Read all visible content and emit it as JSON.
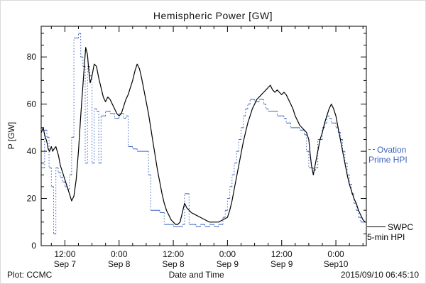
{
  "title": "Hemispheric Power [GW]",
  "axes": {
    "ylabel": "P [GW]",
    "xlabel": "Date and Time"
  },
  "footer": {
    "left": "Plot: CCMC",
    "right": "2015/09/10 06:45:10"
  },
  "legend": {
    "ovation_line1": "Ovation",
    "ovation_line2": "Prime HPI",
    "ovation_color": "#3b63c0",
    "swpc_line1": "SWPC",
    "swpc_line2": "5-min HPI",
    "swpc_color": "#000000"
  },
  "chart_data": {
    "type": "line",
    "title": "Hemispheric Power [GW]",
    "xlabel": "Date and Time",
    "ylabel": "P [GW]",
    "x_unit": "hours since 2015-09-07 00:00",
    "xlim": [
      6.75,
      78.75
    ],
    "ylim": [
      0,
      93
    ],
    "yticks": [
      0,
      20,
      40,
      60,
      80
    ],
    "xticks": [
      {
        "t": 12,
        "label": "12:00",
        "sub": "Sep 7"
      },
      {
        "t": 24,
        "label": "0:00",
        "sub": "Sep 8"
      },
      {
        "t": 36,
        "label": "12:00",
        "sub": "Sep 8"
      },
      {
        "t": 48,
        "label": "0:00",
        "sub": "Sep 9"
      },
      {
        "t": 60,
        "label": "12:00",
        "sub": "Sep 9"
      },
      {
        "t": 72,
        "label": "0:00",
        "sub": "Sep10"
      }
    ],
    "series": [
      {
        "name": "Ovation Prime HPI",
        "color": "#3b63c0",
        "style": "step",
        "x": [
          6.8,
          7.5,
          8,
          8.5,
          9,
          9.5,
          10,
          10.5,
          11,
          11.5,
          12,
          12.5,
          13,
          13.5,
          14,
          15,
          15.5,
          16,
          16.5,
          17,
          17.5,
          18,
          18.5,
          19,
          19.5,
          20,
          21,
          22,
          23,
          24,
          25,
          25.5,
          26,
          27,
          28,
          29,
          30,
          30.5,
          31,
          32,
          33,
          34,
          35,
          36,
          37,
          38,
          38.5,
          39.5,
          40,
          41,
          42,
          43,
          44,
          45,
          46,
          47,
          47.5,
          48,
          48.5,
          49,
          49.5,
          50,
          50.5,
          51,
          51.5,
          52,
          52.5,
          53,
          54,
          55,
          56,
          56.5,
          57,
          58,
          59,
          60,
          60.5,
          61,
          62,
          63,
          64,
          65,
          65.5,
          66,
          67,
          67.5,
          68,
          69,
          69.5,
          70,
          70.5,
          71,
          72,
          72.5,
          73,
          73.5,
          74,
          74.5,
          75,
          75.5,
          76,
          76.5,
          77,
          77.5,
          78.5
        ],
        "y": [
          33,
          49,
          46,
          33,
          25,
          5,
          33,
          31,
          29,
          27,
          25,
          24,
          30,
          46,
          88,
          90,
          80,
          76,
          35,
          76,
          72,
          35,
          58,
          57,
          35,
          55,
          57,
          56,
          54,
          56,
          54,
          55,
          42,
          41,
          40,
          40,
          40,
          30,
          15,
          15,
          14,
          9,
          9,
          8,
          8,
          9,
          22,
          9,
          9,
          8,
          9,
          8,
          9,
          8,
          9,
          12,
          15,
          20,
          25,
          30,
          35,
          40,
          45,
          50,
          55,
          58,
          60,
          62,
          61,
          62,
          60,
          58,
          57,
          57,
          55,
          55,
          54,
          52,
          50,
          50,
          49,
          47,
          40,
          33,
          32,
          33,
          45,
          50,
          52,
          55,
          54,
          52,
          50,
          48,
          45,
          40,
          35,
          30,
          26,
          22,
          18,
          15,
          12,
          10,
          10
        ]
      },
      {
        "name": "SWPC 5-min HPI",
        "color": "#000000",
        "style": "solid",
        "x": [
          6.8,
          7.2,
          7.5,
          8,
          8.3,
          8.6,
          9,
          9.3,
          9.6,
          10,
          10.3,
          10.6,
          11,
          11.5,
          12,
          12.5,
          13,
          13.5,
          14,
          14.5,
          15,
          15.5,
          16,
          16.3,
          16.6,
          17,
          17.3,
          17.6,
          18,
          18.5,
          19,
          19.5,
          20,
          20.5,
          21,
          21.5,
          22,
          22.5,
          23,
          23.5,
          24,
          24.5,
          25,
          25.5,
          26,
          26.5,
          27,
          27.5,
          28,
          28.5,
          29,
          29.5,
          30,
          30.5,
          31,
          31.5,
          32,
          32.5,
          33,
          33.5,
          34,
          34.5,
          35,
          35.5,
          36,
          36.5,
          37,
          37.5,
          38,
          38.5,
          39,
          40,
          41,
          42,
          43,
          44,
          45,
          46,
          47,
          48,
          48.5,
          49,
          49.5,
          50,
          50.5,
          51,
          51.5,
          52,
          52.5,
          53,
          53.5,
          54,
          54.5,
          55,
          55.5,
          56,
          56.5,
          57,
          57.5,
          58,
          58.5,
          59,
          59.5,
          60,
          60.5,
          61,
          61.5,
          62,
          62.5,
          63,
          63.5,
          64,
          64.5,
          65,
          65.5,
          66,
          66.3,
          66.6,
          67,
          67.5,
          68,
          68.5,
          69,
          69.5,
          70,
          70.5,
          71,
          71.5,
          72,
          72.5,
          73,
          73.5,
          74,
          74.5,
          75,
          75.5,
          76,
          76.5,
          77,
          77.5,
          78,
          78.5
        ],
        "y": [
          48,
          50,
          47,
          44,
          41,
          40,
          42,
          40,
          41,
          42,
          40,
          38,
          34,
          31,
          28,
          25,
          22,
          19,
          21,
          28,
          40,
          55,
          68,
          76,
          84,
          81,
          74,
          69,
          72,
          77,
          76,
          71,
          67,
          63,
          61,
          63,
          62,
          60,
          58,
          56,
          55,
          56,
          59,
          62,
          64,
          67,
          70,
          74,
          77,
          75,
          71,
          66,
          61,
          56,
          50,
          44,
          38,
          32,
          27,
          22,
          18,
          15,
          13,
          11,
          10,
          9,
          9,
          10,
          14,
          18,
          16,
          14,
          13,
          12,
          11,
          10,
          10,
          10,
          11,
          12,
          15,
          19,
          24,
          29,
          34,
          39,
          44,
          48,
          52,
          55,
          58,
          60,
          62,
          63,
          64,
          65,
          66,
          67,
          68,
          66,
          65,
          66,
          65,
          64,
          65,
          64,
          62,
          60,
          58,
          55,
          53,
          51,
          50,
          49,
          48,
          45,
          39,
          34,
          30,
          35,
          40,
          45,
          48,
          52,
          55,
          58,
          60,
          58,
          55,
          50,
          45,
          40,
          35,
          30,
          26,
          23,
          20,
          18,
          15,
          13,
          11,
          10
        ]
      }
    ]
  }
}
